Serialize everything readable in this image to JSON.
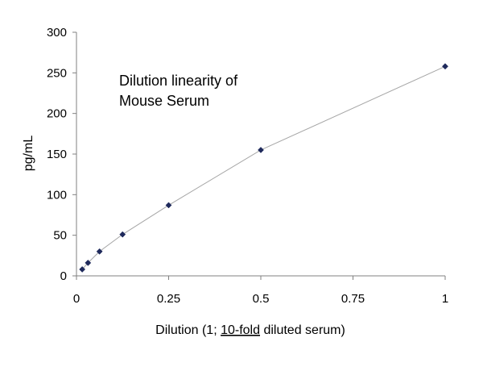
{
  "chart_data": {
    "type": "scatter",
    "title": "",
    "annotation_lines": [
      "Dilution linearity of",
      "Mouse Serum"
    ],
    "xlabel_parts": [
      "Dilution (1; ",
      "10-fold",
      " diluted serum)"
    ],
    "ylabel": "pg/mL",
    "xlim": [
      0,
      1
    ],
    "ylim": [
      0,
      300
    ],
    "x_ticks": [
      0,
      0.25,
      0.5,
      0.75,
      1
    ],
    "x_tick_labels": [
      "0",
      "0.25",
      "0.5",
      "0.75",
      "1"
    ],
    "y_ticks": [
      0,
      50,
      100,
      150,
      200,
      250,
      300
    ],
    "y_tick_labels": [
      "0",
      "50",
      "100",
      "150",
      "200",
      "250",
      "300"
    ],
    "grid": false,
    "legend": "none",
    "series": [
      {
        "x": [
          0.0156,
          0.03125,
          0.0625,
          0.125,
          0.25,
          0.5,
          1
        ],
        "y": [
          8,
          16,
          30,
          51,
          87,
          155,
          258
        ],
        "marker": "diamond",
        "marker_color": "#1F2A5C",
        "line_color": "#A6A6A6"
      }
    ]
  }
}
